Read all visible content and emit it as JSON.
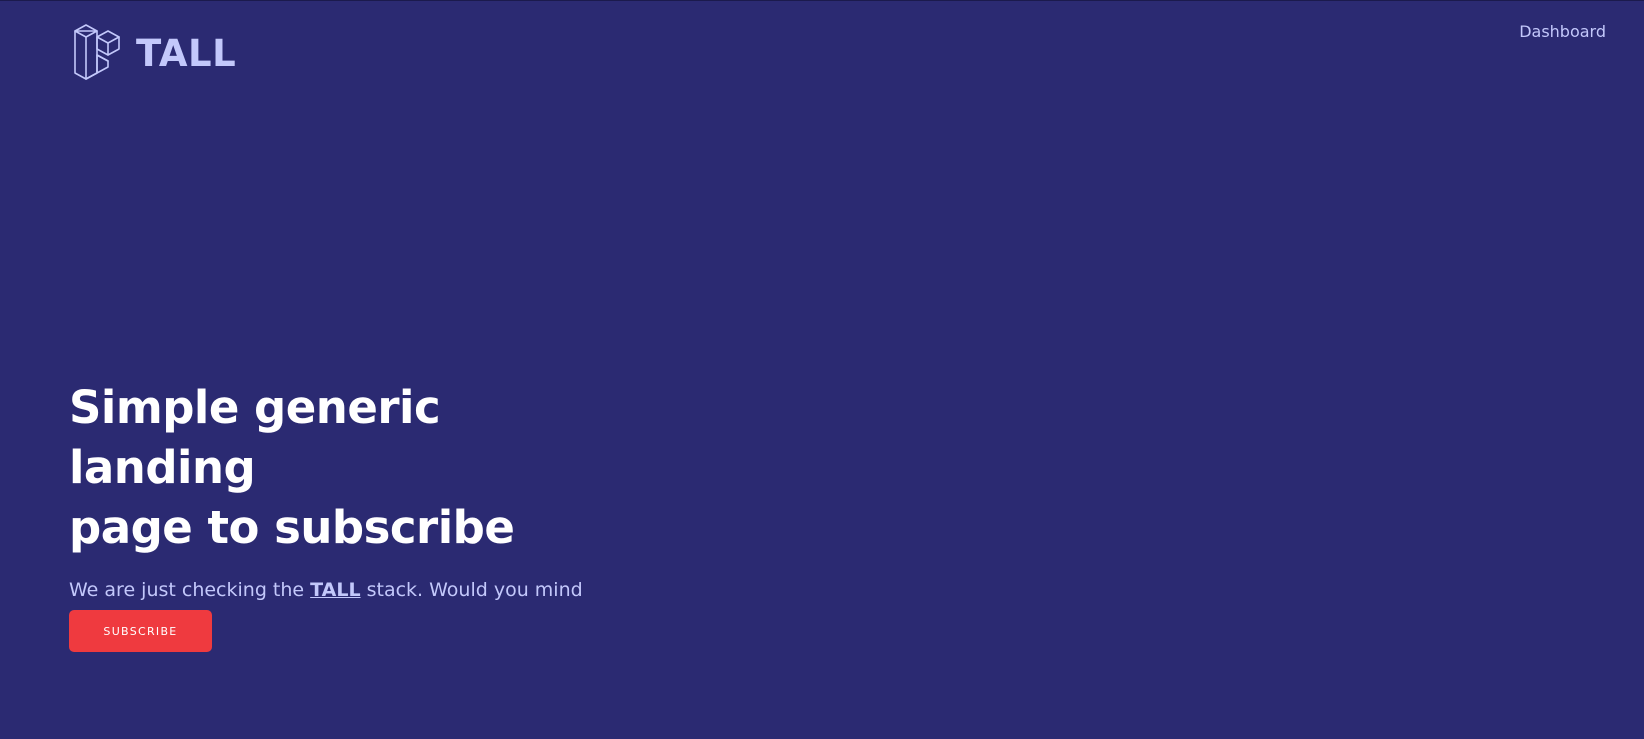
{
  "header": {
    "logo_text": "TALL",
    "logo_icon": "laravel-logo-icon",
    "nav": {
      "dashboard_label": "Dashboard"
    }
  },
  "hero": {
    "title_line1": "Simple generic landing",
    "title_line2": "page to subscribe",
    "subtitle_before": "We are just checking the ",
    "subtitle_link": "TALL",
    "subtitle_after": " stack. Would you mind subscribing?",
    "cta_label": "SUBSCRIBE"
  },
  "colors": {
    "background": "#2b2a72",
    "accent_text": "#c3c8fb",
    "heading": "#ffffff",
    "cta_background": "#ef3a3f"
  }
}
